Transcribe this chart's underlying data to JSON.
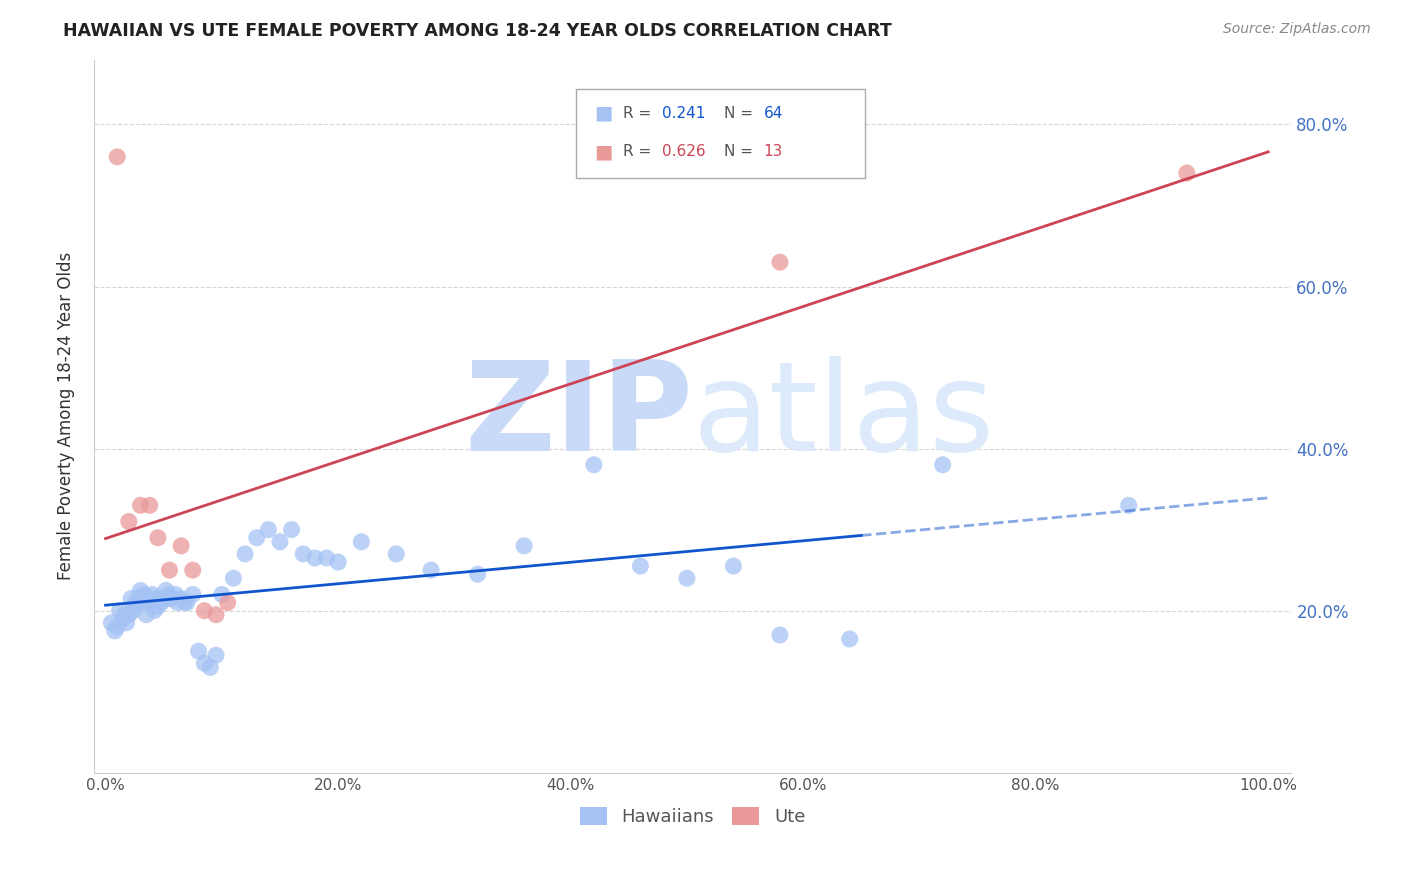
{
  "title": "HAWAIIAN VS UTE FEMALE POVERTY AMONG 18-24 YEAR OLDS CORRELATION CHART",
  "source": "Source: ZipAtlas.com",
  "ylabel": "Female Poverty Among 18-24 Year Olds",
  "hawaiian_R": 0.241,
  "hawaiian_N": 64,
  "ute_R": 0.626,
  "ute_N": 13,
  "hawaiian_color": "#a4c2f4",
  "ute_color": "#ea9999",
  "hawaiian_line_color": "#1155cc",
  "ute_line_color": "#cc4455",
  "right_tick_color": "#4472c4",
  "watermark_color": "#c9daf8",
  "ylim": [
    0.0,
    0.88
  ],
  "xlim": [
    -0.01,
    1.02
  ],
  "hawaiians_x": [
    0.005,
    0.008,
    0.01,
    0.012,
    0.015,
    0.016,
    0.018,
    0.02,
    0.022,
    0.024,
    0.025,
    0.026,
    0.028,
    0.03,
    0.032,
    0.033,
    0.035,
    0.036,
    0.038,
    0.04,
    0.042,
    0.044,
    0.045,
    0.046,
    0.048,
    0.05,
    0.052,
    0.054,
    0.055,
    0.058,
    0.06,
    0.062,
    0.065,
    0.068,
    0.07,
    0.075,
    0.08,
    0.085,
    0.09,
    0.095,
    0.1,
    0.11,
    0.12,
    0.13,
    0.14,
    0.15,
    0.16,
    0.17,
    0.18,
    0.19,
    0.2,
    0.22,
    0.25,
    0.28,
    0.32,
    0.36,
    0.42,
    0.46,
    0.5,
    0.54,
    0.58,
    0.64,
    0.72,
    0.88
  ],
  "hawaiians_y": [
    0.185,
    0.175,
    0.18,
    0.2,
    0.19,
    0.195,
    0.185,
    0.195,
    0.215,
    0.2,
    0.205,
    0.21,
    0.215,
    0.225,
    0.215,
    0.22,
    0.195,
    0.21,
    0.21,
    0.22,
    0.2,
    0.215,
    0.205,
    0.215,
    0.21,
    0.215,
    0.225,
    0.22,
    0.215,
    0.215,
    0.22,
    0.21,
    0.215,
    0.21,
    0.21,
    0.22,
    0.15,
    0.135,
    0.13,
    0.145,
    0.22,
    0.24,
    0.27,
    0.29,
    0.3,
    0.285,
    0.3,
    0.27,
    0.265,
    0.265,
    0.26,
    0.285,
    0.27,
    0.25,
    0.245,
    0.28,
    0.38,
    0.255,
    0.24,
    0.255,
    0.17,
    0.165,
    0.38,
    0.33
  ],
  "utes_x": [
    0.01,
    0.02,
    0.03,
    0.038,
    0.045,
    0.055,
    0.065,
    0.075,
    0.085,
    0.095,
    0.105,
    0.58,
    0.93
  ],
  "utes_y": [
    0.76,
    0.31,
    0.33,
    0.33,
    0.29,
    0.25,
    0.28,
    0.25,
    0.2,
    0.195,
    0.21,
    0.63,
    0.74
  ],
  "yticks": [
    0.0,
    0.2,
    0.4,
    0.6,
    0.8
  ],
  "xticks": [
    0.0,
    0.2,
    0.4,
    0.6,
    0.8,
    1.0
  ],
  "xtick_labels": [
    "0.0%",
    "20.0%",
    "40.0%",
    "60.0%",
    "80.0%",
    "100.0%"
  ],
  "ytick_labels_right": [
    "20.0%",
    "40.0%",
    "60.0%",
    "80.0%"
  ]
}
